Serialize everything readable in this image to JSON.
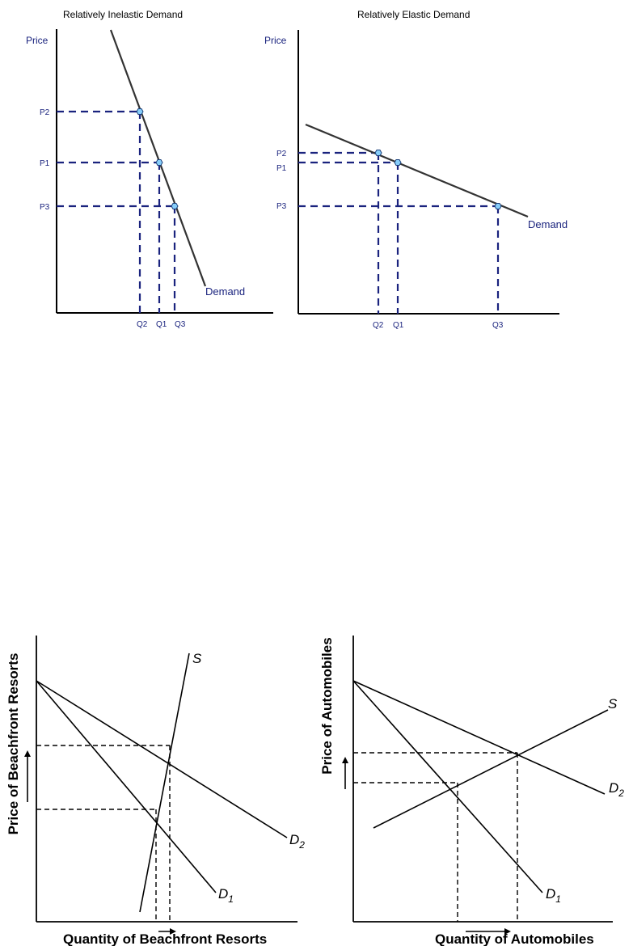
{
  "panels": {
    "inelastic": {
      "title": "Relatively Inelastic Demand",
      "y_label": "Price",
      "curve_label": "Demand",
      "prices": [
        "P2",
        "P1",
        "P3"
      ],
      "quantities": [
        "Q2",
        "Q1",
        "Q3"
      ]
    },
    "elastic": {
      "title": "Relatively Elastic Demand",
      "y_label": "Price",
      "curve_label": "Demand",
      "prices": [
        "P2",
        "P1",
        "P3"
      ],
      "quantities": [
        "Q2",
        "Q1",
        "Q3"
      ]
    },
    "resorts": {
      "y_label": "Price of Beachfront Resorts",
      "x_label": "Quantity of Beachfront Resorts",
      "supply_label": "S",
      "d1_label": "D",
      "d1_sub": "1",
      "d2_label": "D",
      "d2_sub": "2"
    },
    "autos": {
      "y_label": "Price of Automobiles",
      "x_label": "Quantity of Automobiles",
      "supply_label": "S",
      "d1_label": "D",
      "d1_sub": "1",
      "d2_label": "D",
      "d2_sub": "2"
    }
  },
  "colors": {
    "axis": "#000000",
    "curve": "#333333",
    "guide_blue": "#1a237e",
    "point_fill": "#87cefa",
    "point_stroke": "#1a3f7a"
  }
}
